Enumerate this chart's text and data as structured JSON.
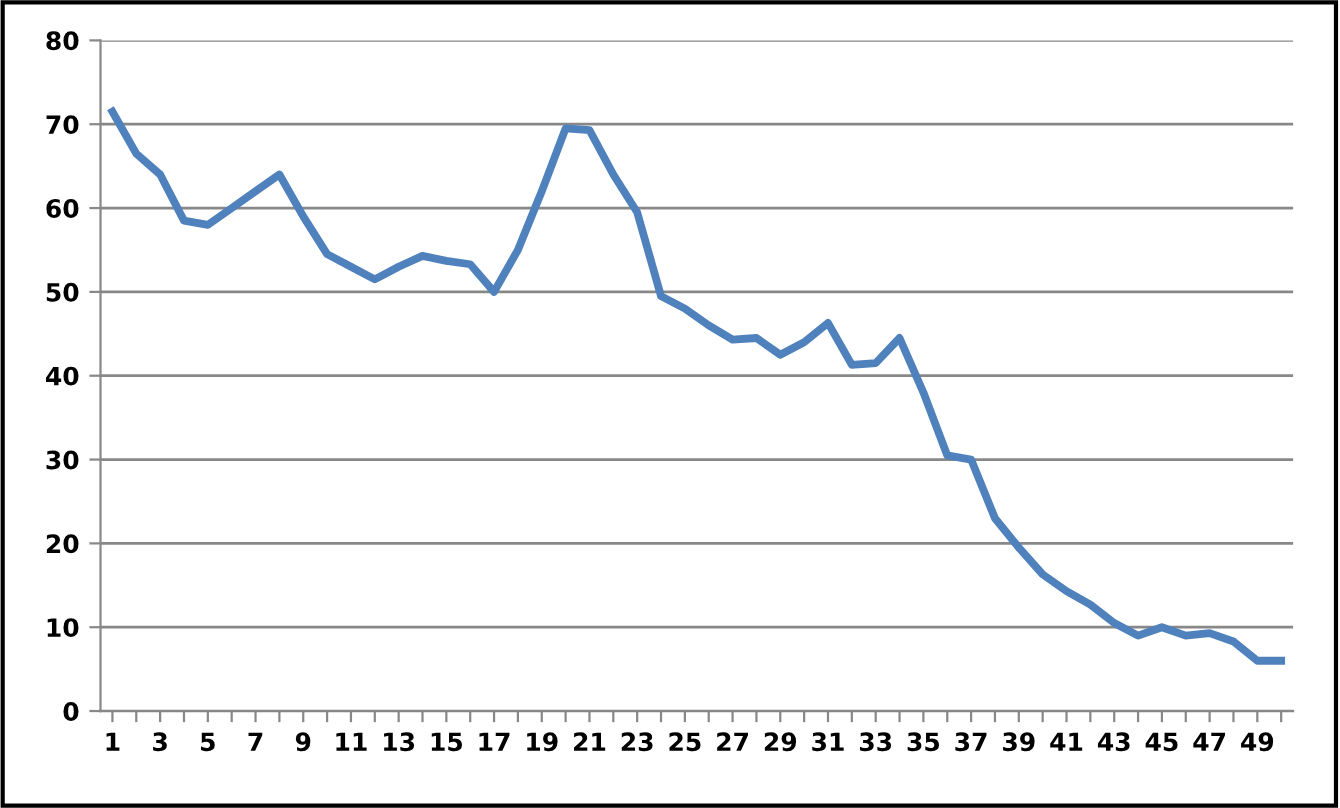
{
  "chart_data": {
    "type": "line",
    "categories": [
      "1",
      null,
      "3",
      null,
      "5",
      null,
      "7",
      null,
      "9",
      null,
      "11",
      null,
      "13",
      null,
      "15",
      null,
      "17",
      null,
      "19",
      null,
      "21",
      null,
      "23",
      null,
      "25",
      null,
      "27",
      null,
      "29",
      null,
      "31",
      null,
      "33",
      null,
      "35",
      null,
      "37",
      null,
      "39",
      null,
      "41",
      null,
      "43",
      null,
      "45",
      null,
      "47",
      null,
      "49",
      null
    ],
    "series": [
      {
        "color": "#4f81bd",
        "values": [
          71.5,
          66.5,
          64,
          58.5,
          58,
          60,
          62,
          64,
          59,
          54.5,
          53,
          51.5,
          53,
          54.3,
          53.7,
          53.3,
          50,
          55,
          62,
          69.5,
          69.3,
          64,
          59.5,
          49.5,
          48,
          46,
          44.3,
          44.5,
          42.5,
          44,
          46.3,
          41.3,
          41.5,
          44.5,
          38,
          30.5,
          30,
          23,
          19.5,
          16.3,
          14.3,
          12.7,
          10.5,
          9,
          10,
          9,
          9.3,
          8.3,
          6,
          6
        ]
      }
    ],
    "ylim": [
      0,
      80
    ],
    "yticks": [
      0,
      10,
      20,
      30,
      40,
      50,
      60,
      70,
      80
    ],
    "grid": "y",
    "legend": false,
    "marker": "none",
    "line_style": "solid"
  }
}
